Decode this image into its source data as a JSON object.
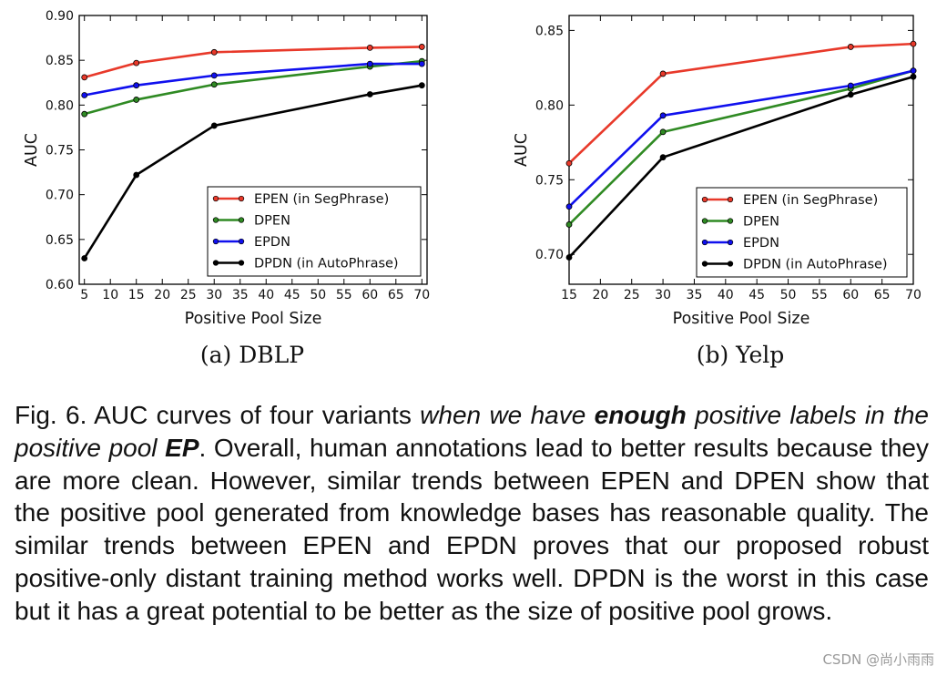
{
  "chart_data": [
    {
      "type": "line",
      "subcaption": "(a)  DBLP",
      "xlabel": "Positive Pool Size",
      "ylabel": "AUC",
      "xlim": [
        4,
        71
      ],
      "ylim": [
        0.6,
        0.9
      ],
      "xticks": [
        5,
        10,
        15,
        20,
        25,
        30,
        35,
        40,
        45,
        50,
        55,
        60,
        65,
        70
      ],
      "yticks": [
        "0.60",
        "0.65",
        "0.70",
        "0.75",
        "0.80",
        "0.85",
        "0.90"
      ],
      "legend_position": "lower-right",
      "x": [
        5,
        15,
        30,
        60,
        70
      ],
      "series": [
        {
          "name": "EPEN (in SegPhrase)",
          "color": "#e8392a",
          "values": [
            0.831,
            0.847,
            0.859,
            0.864,
            0.865
          ]
        },
        {
          "name": "DPEN",
          "color": "#2f8a23",
          "values": [
            0.79,
            0.806,
            0.823,
            0.843,
            0.849
          ]
        },
        {
          "name": "EPDN",
          "color": "#1010ee",
          "values": [
            0.811,
            0.822,
            0.833,
            0.846,
            0.846
          ]
        },
        {
          "name": "DPDN (in AutoPhrase)",
          "color": "#000000",
          "values": [
            0.629,
            0.722,
            0.777,
            0.812,
            0.822
          ]
        }
      ]
    },
    {
      "type": "line",
      "subcaption": "(b)  Yelp",
      "xlabel": "Positive Pool Size",
      "ylabel": "AUC",
      "xlim": [
        15,
        70
      ],
      "ylim": [
        0.68,
        0.86
      ],
      "xticks": [
        15,
        20,
        25,
        30,
        35,
        40,
        45,
        50,
        55,
        60,
        65,
        70
      ],
      "yticks": [
        "0.70",
        "0.75",
        "0.80",
        "0.85"
      ],
      "legend_position": "lower-right",
      "x": [
        15,
        30,
        60,
        70
      ],
      "series": [
        {
          "name": "EPEN (in SegPhrase)",
          "color": "#e8392a",
          "values": [
            0.761,
            0.821,
            0.839,
            0.841
          ]
        },
        {
          "name": "DPEN",
          "color": "#2f8a23",
          "values": [
            0.72,
            0.782,
            0.811,
            0.823
          ]
        },
        {
          "name": "EPDN",
          "color": "#1010ee",
          "values": [
            0.732,
            0.793,
            0.813,
            0.823
          ]
        },
        {
          "name": "DPDN (in AutoPhrase)",
          "color": "#000000",
          "values": [
            0.698,
            0.765,
            0.807,
            0.819
          ]
        }
      ]
    }
  ],
  "caption": {
    "lead": "Fig. 6. AUC curves of four variants ",
    "italic1": "when we have ",
    "bold_italic1": "enough",
    "italic2": " positive labels in the positive pool ",
    "bold_italic2": "EP",
    "rest": ". Overall, human annotations lead to better results because they are more clean. However, similar trends between EPEN and DPEN show that the positive pool generated from knowledge bases has reasonable quality. The similar trends between EPEN and EPDN proves that our proposed robust positive-only distant training method works well. DPDN is the worst in this case but it has a great potential to be better as the size of positive pool grows."
  },
  "watermark": "CSDN @尚小雨雨"
}
